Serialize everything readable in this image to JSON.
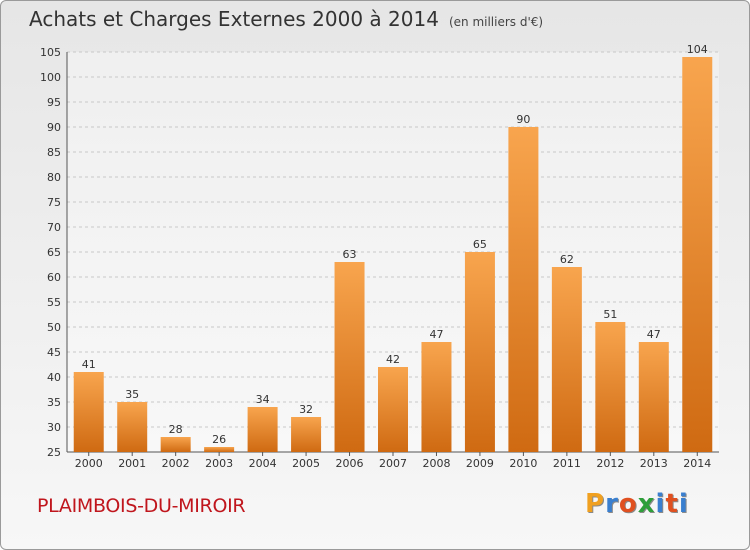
{
  "title": "Achats et Charges Externes 2000 à 2014",
  "subtitle": "(en milliers d'€)",
  "commune": "PLAIMBOIS-DU-MIROIR",
  "brand": "Proxiti",
  "colors": {
    "bar_light": "#f8a54e",
    "bar_dark": "#cf6a12",
    "commune_text": "#c0161d",
    "brand_letters": [
      "#f0a020",
      "#3a7fcf",
      "#e05020",
      "#2e9f3a",
      "#3a7fcf",
      "#e05020",
      "#3a7fcf"
    ]
  },
  "chart_data": {
    "type": "bar",
    "categories": [
      "2000",
      "2001",
      "2002",
      "2003",
      "2004",
      "2005",
      "2006",
      "2007",
      "2008",
      "2009",
      "2010",
      "2011",
      "2012",
      "2013",
      "2014"
    ],
    "values": [
      41,
      35,
      28,
      26,
      34,
      32,
      63,
      42,
      47,
      65,
      90,
      62,
      51,
      47,
      104
    ],
    "ylim": [
      25,
      105
    ],
    "yticks": [
      25,
      30,
      35,
      40,
      45,
      50,
      55,
      60,
      65,
      70,
      75,
      80,
      85,
      90,
      95,
      100,
      105
    ],
    "grid": true,
    "legend": "none"
  }
}
